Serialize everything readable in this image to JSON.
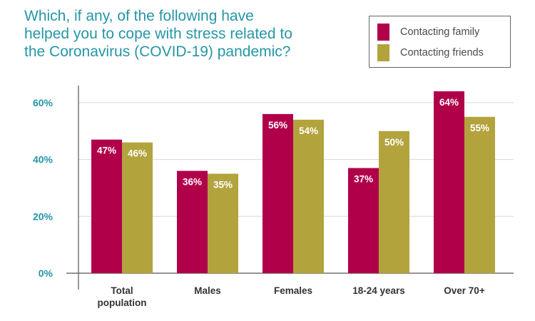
{
  "chart_data": {
    "type": "bar",
    "title": "Which, if any, of the following have\nhelped you to cope with stress related to\nthe Coronavirus (COVID-19) pandemic?",
    "categories": [
      [
        "Total",
        "population"
      ],
      [
        "Males"
      ],
      [
        "Females"
      ],
      [
        "18-24 years"
      ],
      [
        "Over 70+"
      ]
    ],
    "series": [
      {
        "name": "Contacting family",
        "values": [
          47,
          36,
          56,
          37,
          64
        ],
        "labels": [
          "47%",
          "36%",
          "56%",
          "37%",
          "64%"
        ],
        "color": "#b0004a"
      },
      {
        "name": "Contacting friends",
        "values": [
          46,
          35,
          54,
          50,
          55
        ],
        "labels": [
          "46%",
          "35%",
          "54%",
          "50%",
          "55%"
        ],
        "color": "#b3a33d"
      }
    ],
    "yticks": [
      0,
      20,
      40,
      60
    ],
    "ytick_labels": [
      "0%",
      "20%",
      "40%",
      "60%"
    ],
    "ylim": [
      0,
      66
    ],
    "xlabel": "",
    "ylabel": "",
    "grid": true,
    "legend_position": "top-right",
    "colors": {
      "title": "#2596a6",
      "axis_text": "#2596a6",
      "gridline": "#d8d8d8",
      "axis": "#555555"
    }
  }
}
